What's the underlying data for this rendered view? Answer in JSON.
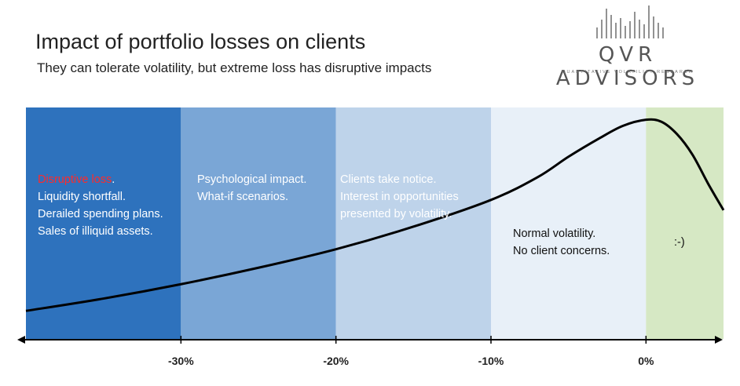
{
  "header": {
    "title": "Impact of portfolio losses on clients",
    "subtitle": "They can tolerate volatility, but extreme loss has disruptive impacts"
  },
  "logo": {
    "name": "QVR ADVISORS",
    "tagline": "QUANTITATIVE VOLATILITY RESEARCH"
  },
  "chart_data": {
    "type": "area",
    "title": "Impact of portfolio losses on clients",
    "xlabel": "",
    "ylabel": "",
    "xlim": [
      -40,
      5
    ],
    "x_ticks": [
      "-30%",
      "-20%",
      "-10%",
      "0%"
    ],
    "x_tick_values": [
      -30,
      -20,
      -10,
      0
    ],
    "zones": [
      {
        "name": "disruptive",
        "from": -40,
        "to": -30,
        "color": "#2e72bd",
        "lines": [
          "Disruptive loss",
          "Liquidity shortfall.",
          "Derailed spending plans.",
          "Sales of illiquid assets."
        ]
      },
      {
        "name": "psychological",
        "from": -30,
        "to": -20,
        "color": "#7aa6d6",
        "lines": [
          "Psychological impact.",
          "What-if scenarios."
        ]
      },
      {
        "name": "notice",
        "from": -20,
        "to": -10,
        "color": "#bed3ea",
        "lines": [
          "Clients take notice.",
          "Interest in opportunities",
          "presented by volatility."
        ]
      },
      {
        "name": "normal",
        "from": -10,
        "to": 0,
        "color": "#e8f0f8",
        "lines": [
          "Normal volatility.",
          "No client concerns."
        ]
      },
      {
        "name": "happy",
        "from": 0,
        "to": 5,
        "color": "#d6e8c4",
        "lines": [
          ":-)"
        ]
      }
    ],
    "curve": {
      "x": [
        -40,
        -35,
        -30,
        -25,
        -20,
        -15,
        -10,
        -7,
        -5,
        -3,
        -1.5,
        0,
        1,
        2,
        3,
        4,
        5
      ],
      "y": [
        0.06,
        0.12,
        0.19,
        0.27,
        0.36,
        0.47,
        0.6,
        0.71,
        0.81,
        0.9,
        0.96,
        0.99,
        0.98,
        0.92,
        0.82,
        0.68,
        0.55
      ]
    },
    "disruptive_period": "."
  }
}
